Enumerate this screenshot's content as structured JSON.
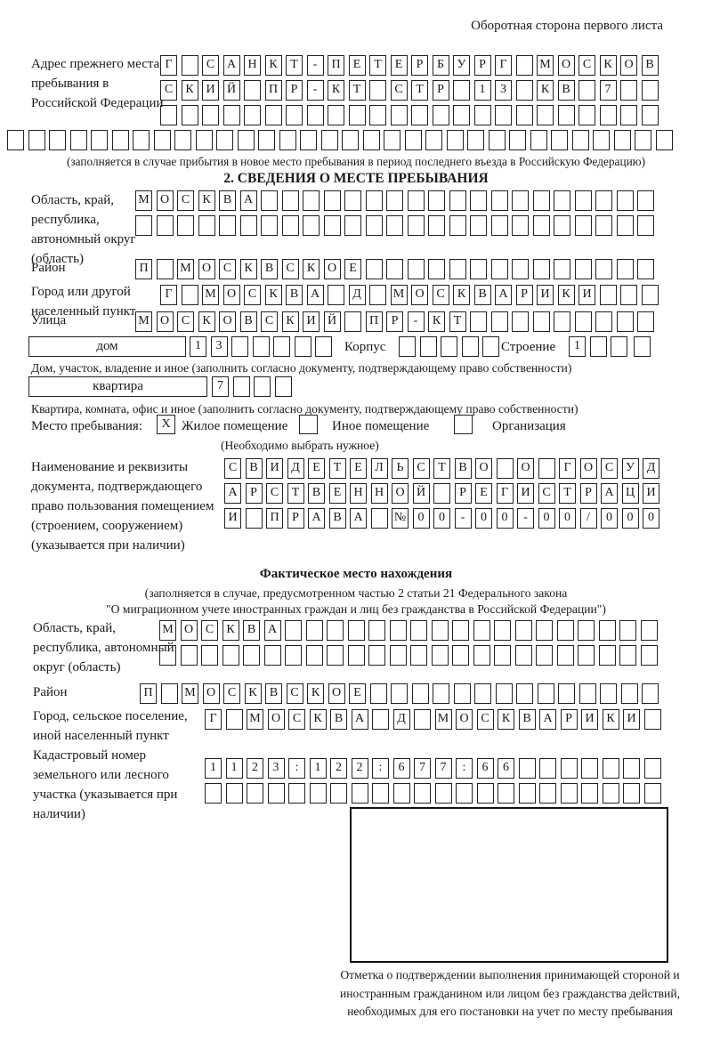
{
  "colors": {
    "ink": "#1a1a1a",
    "paper": "#ffffff",
    "box_border": "#222222"
  },
  "page": {
    "header_note": "Оборотная сторона первого листа"
  },
  "prev_address": {
    "label": "Адрес прежнего места пребывания в Российской Федерации",
    "row1": {
      "len": 24,
      "text": "Г САНКТ-ПЕТЕРБУРГ МОСКОВ"
    },
    "row2": {
      "len": 24,
      "text": "СКИЙ ПР-КТ СТР 13 КВ 7"
    },
    "row3": {
      "len": 24,
      "text": ""
    },
    "row4": {
      "len": 32,
      "text": ""
    },
    "note": "(заполняется в случае прибытия в новое место пребывания в период последнего въезда в Российскую Федерацию)"
  },
  "section2": {
    "title": "2. СВЕДЕНИЯ О МЕСТЕ ПРЕБЫВАНИЯ",
    "region_label": "Область, край, республика, автономный округ (область)",
    "region_row1": {
      "len": 25,
      "text": "МОСКВА"
    },
    "region_row2": {
      "len": 25,
      "text": ""
    },
    "district_label": "Район",
    "district_row": {
      "len": 25,
      "text": "П МОСКВСКОЕ"
    },
    "city_label": "Город или другой населенный пункт",
    "city_row": {
      "len": 24,
      "text": "Г МОСКВА Д МОСКВАРИКИ"
    },
    "street_label": "Улица",
    "street_row": {
      "len": 25,
      "text": "МОСКОВСКИЙ ПР-КТ"
    },
    "house": {
      "field_label": "дом",
      "cells": {
        "len": 7,
        "text": "13"
      },
      "korpus_label": "Корпус",
      "korpus_cells": {
        "len": 5,
        "text": ""
      },
      "stroenie_label": "Строение",
      "stroenie_cells": {
        "len": 3,
        "text": "1"
      },
      "extra_cells": {
        "len": 1,
        "text": ""
      }
    },
    "house_note": "Дом, участок, владение и иное (заполнить согласно документу, подтверждающему право собственности)",
    "apartment": {
      "field_label": "квартира",
      "cells": {
        "len": 4,
        "text": "7"
      }
    },
    "apartment_note": "Квартира, комната, офис и иное (заполнить согласно документу, подтверждающему право собственности)",
    "stay": {
      "label": "Место пребывания:",
      "options": [
        {
          "mark": "X",
          "label": "Жилое помещение"
        },
        {
          "mark": "",
          "label": "Иное помещение"
        },
        {
          "mark": "",
          "label": "Организация"
        }
      ],
      "note": "(Необходимо выбрать нужное)"
    },
    "doc_label": "Наименование и реквизиты документа, подтверждающего право пользования помещением (строением, сооружением) (указывается при наличии)",
    "doc_row1": {
      "len": 21,
      "text": "СВИДЕТЕЛЬСТВО О ГОСУД"
    },
    "doc_row2": {
      "len": 21,
      "text": "АРСТВЕННОЙ РЕГИСТРАЦИ"
    },
    "doc_row3": {
      "len": 21,
      "text": "И ПРАВА №00-00-00/000"
    }
  },
  "actual_location": {
    "title": "Фактическое место нахождения",
    "note_line1": "(заполняется в случае, предусмотренном частью 2 статьи 21 Федерального закона",
    "note_line2": "\"О миграционном учете иностранных граждан и лиц без гражданства в Российской Федерации\")",
    "region_label": "Область, край, республика, автономный округ (область)",
    "region_row1": {
      "len": 24,
      "text": "МОСКВА"
    },
    "region_row2": {
      "len": 24,
      "text": ""
    },
    "district_label": "Район",
    "district_row": {
      "len": 25,
      "text": "П МОСКВСКОЕ"
    },
    "city_label": "Город, сельское поселение, иной населенный пункт",
    "city_row": {
      "len": 22,
      "text": "Г МОСКВА Д МОСКВАРИКИ"
    },
    "cadastre_label": "Кадастровый номер земельного или лесного участка (указывается при наличии)",
    "cadastre_row1": {
      "len": 22,
      "text": "1123:122:677:66"
    },
    "cadastre_row2": {
      "len": 22,
      "text": ""
    }
  },
  "confirmation": {
    "note": "Отметка о подтверждении выполнения принимающей стороной и иностранным гражданином или лицом без гражданства действий, необходимых для его постановки на учет по месту пребывания"
  }
}
